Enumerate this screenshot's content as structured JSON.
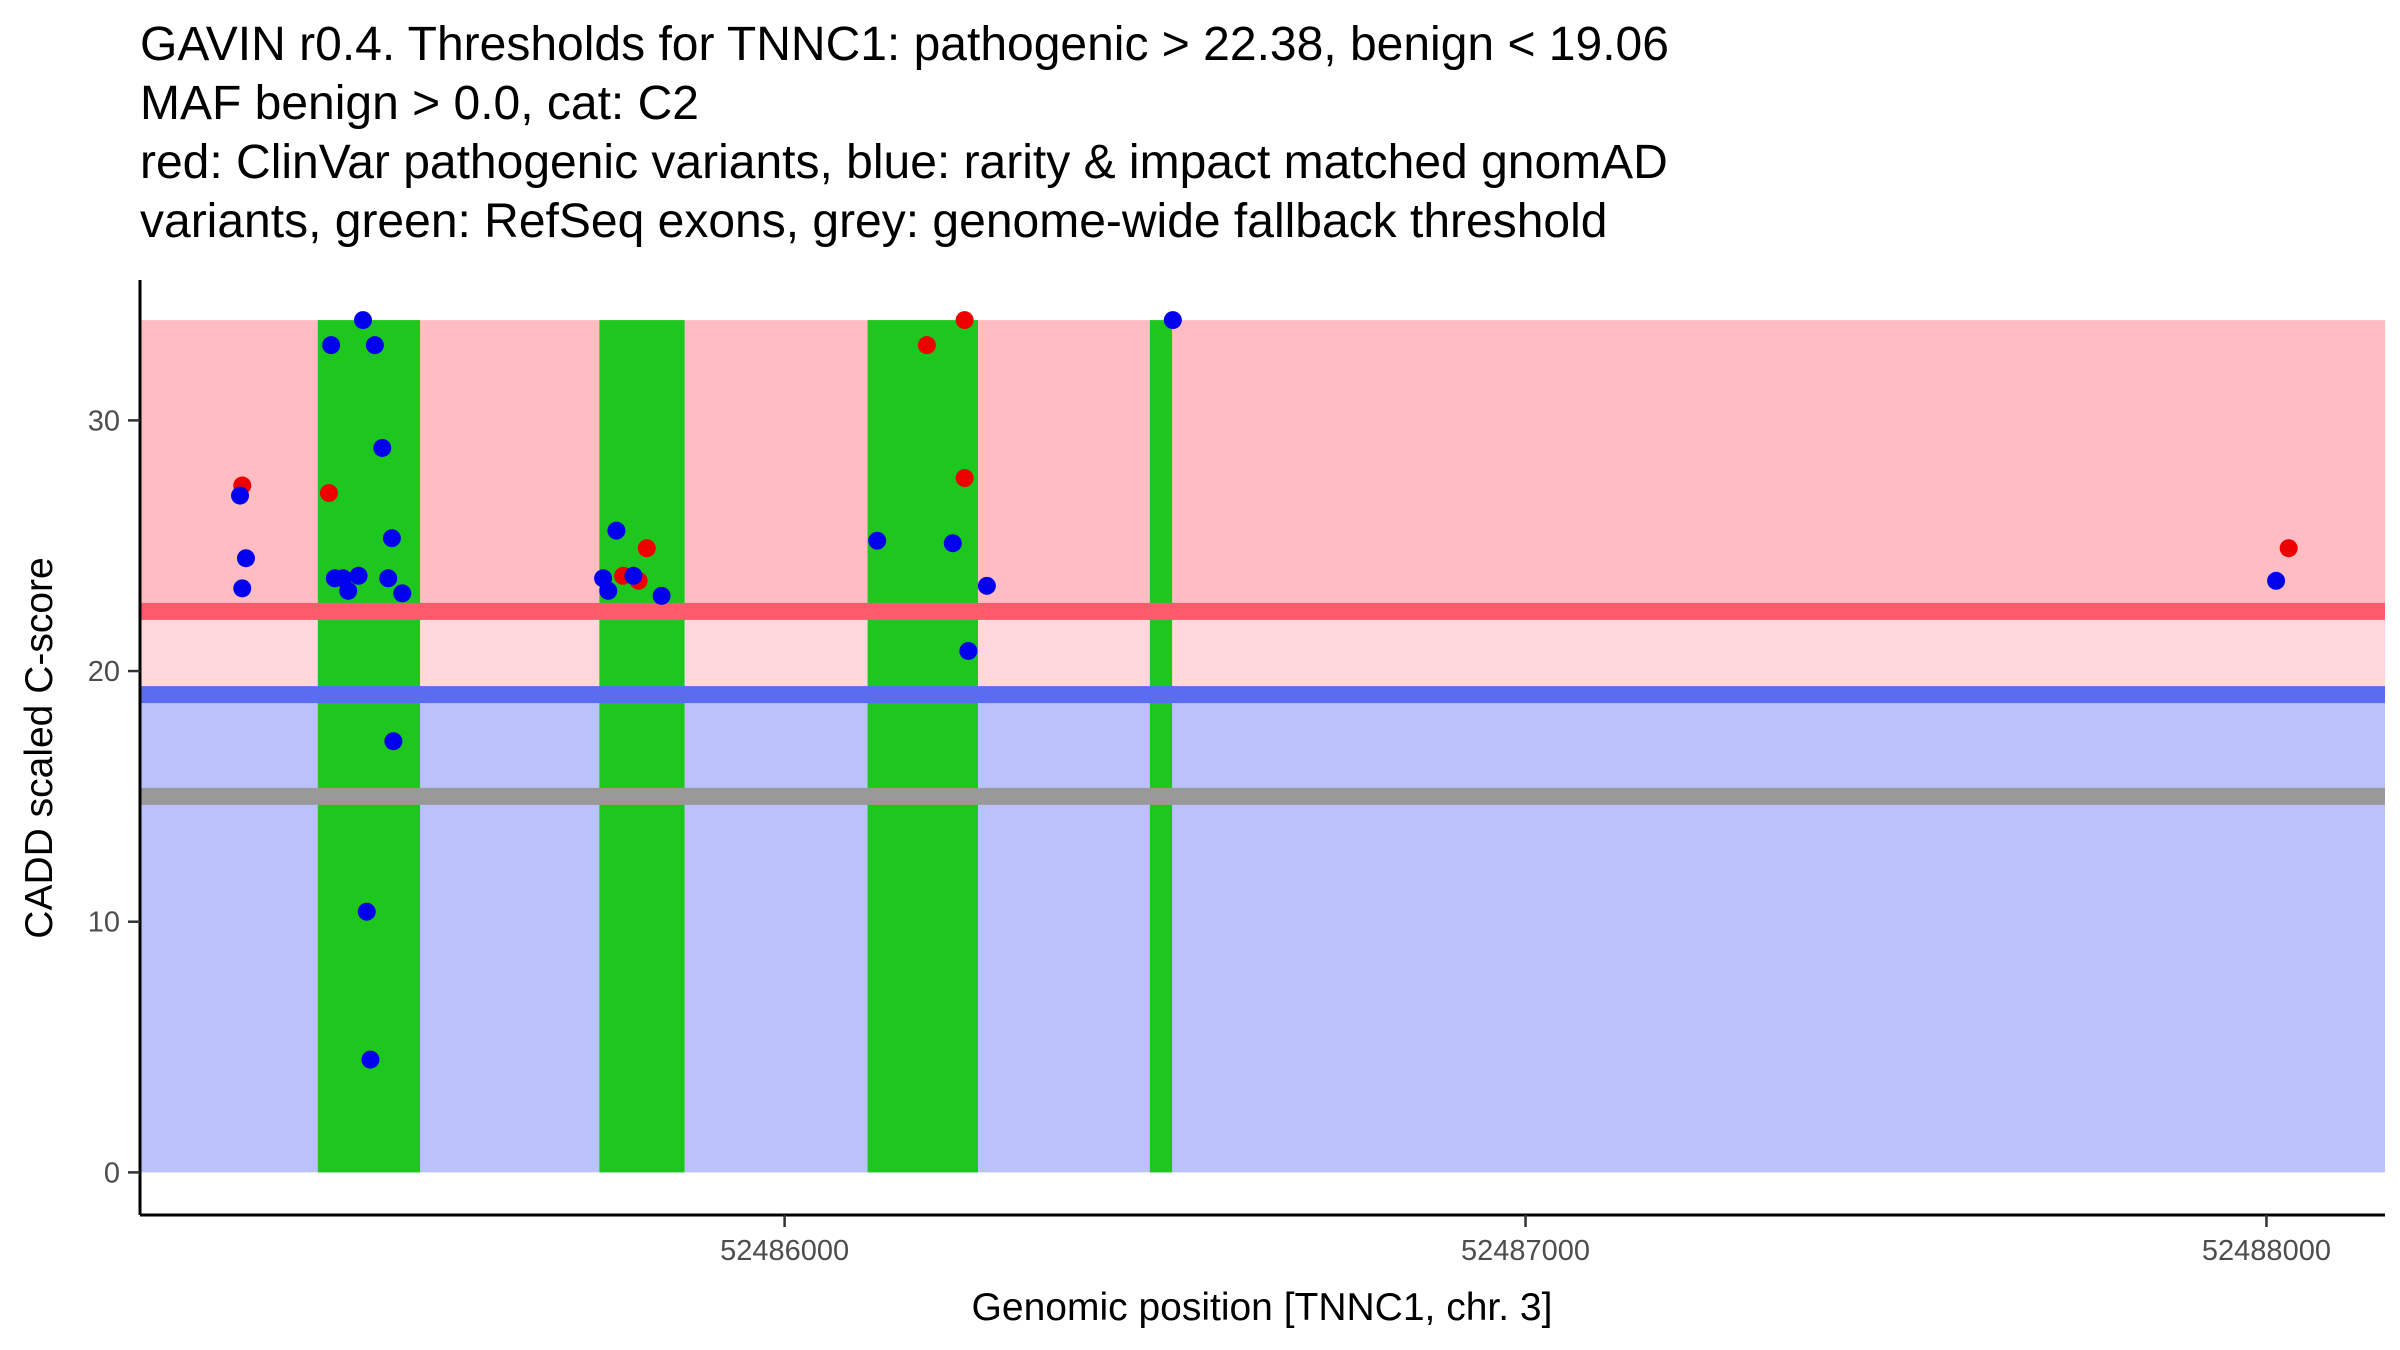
{
  "chart_data": {
    "type": "scatter",
    "title_lines": [
      "GAVIN r0.4. Thresholds for TNNC1: pathogenic > 22.38, benign < 19.06",
      "MAF benign > 0.0, cat: C2",
      "red: ClinVar pathogenic variants, blue: rarity & impact matched gnomAD",
      "variants, green: RefSeq exons, grey: genome-wide fallback threshold"
    ],
    "xlabel": "Genomic position [TNNC1, chr. 3]",
    "ylabel": "CADD scaled C-score",
    "xlim": [
      52485130,
      52488160
    ],
    "ylim": [
      -1.7,
      35.6
    ],
    "x_ticks": [
      52486000,
      52487000,
      52488000
    ],
    "y_ticks": [
      0,
      10,
      20,
      30
    ],
    "pathogenic_threshold": 22.38,
    "benign_threshold": 19.06,
    "fallback_threshold": 15.0,
    "max_score": 34.0,
    "colors": {
      "pathogenic_region": "#ffbdc3",
      "intermediate_region": "#ffd7dc",
      "benign_region": "#bbc1fa",
      "pathogenic_line": "#fd5a6b",
      "benign_line": "#5a6cf0",
      "fallback_line": "#999999",
      "exon": "#1ec71e",
      "clinvar_point": "#ee0000",
      "gnomad_point": "#0000ee"
    },
    "exons": [
      [
        52485370,
        52485508
      ],
      [
        52485750,
        52485865
      ],
      [
        52486112,
        52486261
      ],
      [
        52486493,
        52486523
      ]
    ],
    "series": [
      {
        "name": "ClinVar pathogenic variants",
        "color": "#ee0000",
        "points": [
          [
            52485268,
            27.4
          ],
          [
            52485385,
            27.1
          ],
          [
            52485782,
            23.8
          ],
          [
            52485803,
            23.6
          ],
          [
            52485814,
            24.9
          ],
          [
            52486192,
            33.0
          ],
          [
            52486243,
            34.0
          ],
          [
            52486243,
            27.7
          ],
          [
            52488030,
            24.9
          ]
        ]
      },
      {
        "name": "gnomAD variants",
        "color": "#0000ee",
        "points": [
          [
            52485265,
            27.0
          ],
          [
            52485273,
            24.5
          ],
          [
            52485268,
            23.3
          ],
          [
            52485388,
            33.0
          ],
          [
            52485431,
            34.0
          ],
          [
            52485447,
            33.0
          ],
          [
            52485457,
            28.9
          ],
          [
            52485470,
            25.3
          ],
          [
            52485465,
            23.7
          ],
          [
            52485484,
            23.1
          ],
          [
            52485472,
            17.2
          ],
          [
            52485436,
            10.4
          ],
          [
            52485441,
            4.5
          ],
          [
            52485393,
            23.7
          ],
          [
            52485404,
            23.7
          ],
          [
            52485411,
            23.2
          ],
          [
            52485425,
            23.8
          ],
          [
            52485773,
            25.6
          ],
          [
            52485755,
            23.7
          ],
          [
            52485762,
            23.2
          ],
          [
            52485796,
            23.8
          ],
          [
            52485834,
            23.0
          ],
          [
            52486125,
            25.2
          ],
          [
            52486227,
            25.1
          ],
          [
            52486273,
            23.4
          ],
          [
            52486248,
            20.8
          ],
          [
            52486524,
            34.0
          ],
          [
            52488013,
            23.6
          ]
        ]
      }
    ]
  }
}
